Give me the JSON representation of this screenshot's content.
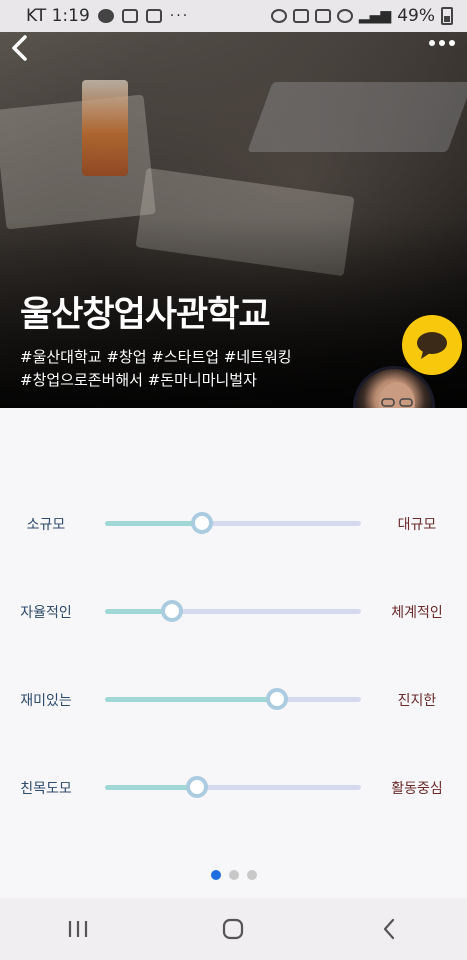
{
  "status_bar": {
    "carrier_time": "KT 1:19",
    "overflow": "···",
    "battery": "49%"
  },
  "header": {
    "back_icon": "chevron-left-icon",
    "more_icon": "more-dots-icon"
  },
  "hero": {
    "title": "울산창업사관학교",
    "tags_line1": "#울산대학교 #창업 #스타트업 #네트워킹",
    "tags_line2": "#창업으로존버해서 #돈마니마니벌자"
  },
  "sliders": [
    {
      "left": "소규모",
      "right": "대규모",
      "value": 0.38
    },
    {
      "left": "자율적인",
      "right": "체계적인",
      "value": 0.26
    },
    {
      "left": "재미있는",
      "right": "진지한",
      "value": 0.67
    },
    {
      "left": "친목도모",
      "right": "활동중심",
      "value": 0.36
    }
  ],
  "pager": {
    "count": 3,
    "active": 0
  },
  "colors": {
    "accent": "#1f6fe0",
    "chat": "#f7c80b",
    "track": "#d6daf0",
    "track_fill": "#9fd8d4"
  }
}
